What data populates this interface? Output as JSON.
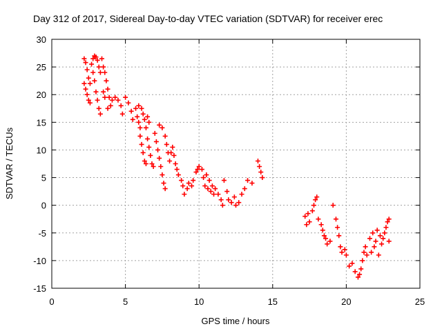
{
  "chart_data": {
    "type": "scatter",
    "title": "Day 312 of 2017, Sidereal Day-to-day VTEC variation (SDTVAR) for receiver erec",
    "xlabel": "GPS time / hours",
    "ylabel": "SDTVAR / TECUs",
    "xlim": [
      0,
      25
    ],
    "ylim": [
      -15,
      30
    ],
    "xticks": [
      "0",
      "5",
      "10",
      "15",
      "20",
      "25"
    ],
    "yticks": [
      "-15",
      "-10",
      "-5",
      "0",
      "5",
      "10",
      "15",
      "20",
      "25",
      "30"
    ],
    "grid": true,
    "marker": "+",
    "color": "#ff0000",
    "series": [
      {
        "name": "SDTVAR",
        "points": [
          [
            2.2,
            26.5
          ],
          [
            2.3,
            25.8
          ],
          [
            2.4,
            24.5
          ],
          [
            2.5,
            23.0
          ],
          [
            2.6,
            22.0
          ],
          [
            2.7,
            25.5
          ],
          [
            2.8,
            26.5
          ],
          [
            2.9,
            27.0
          ],
          [
            3.0,
            26.8
          ],
          [
            3.1,
            26.2
          ],
          [
            3.2,
            25.0
          ],
          [
            3.3,
            24.0
          ],
          [
            3.4,
            26.5
          ],
          [
            3.5,
            25.0
          ],
          [
            3.6,
            24.0
          ],
          [
            3.7,
            22.5
          ],
          [
            3.8,
            21.0
          ],
          [
            3.9,
            19.5
          ],
          [
            4.0,
            18.0
          ],
          [
            2.2,
            22.0
          ],
          [
            2.3,
            21.0
          ],
          [
            2.4,
            20.0
          ],
          [
            2.5,
            19.0
          ],
          [
            2.6,
            18.5
          ],
          [
            2.8,
            24.0
          ],
          [
            2.9,
            22.5
          ],
          [
            3.0,
            20.5
          ],
          [
            3.1,
            19.0
          ],
          [
            3.2,
            17.5
          ],
          [
            3.3,
            16.5
          ],
          [
            3.5,
            20.5
          ],
          [
            3.6,
            19.5
          ],
          [
            3.8,
            17.5
          ],
          [
            4.1,
            19.0
          ],
          [
            4.3,
            19.5
          ],
          [
            4.5,
            19.0
          ],
          [
            4.7,
            18.0
          ],
          [
            4.8,
            16.5
          ],
          [
            5.0,
            19.5
          ],
          [
            5.2,
            18.5
          ],
          [
            5.4,
            17.0
          ],
          [
            5.5,
            15.5
          ],
          [
            5.7,
            17.5
          ],
          [
            5.8,
            16.0
          ],
          [
            5.9,
            15.0
          ],
          [
            6.0,
            14.0
          ],
          [
            6.1,
            17.5
          ],
          [
            6.2,
            16.5
          ],
          [
            6.3,
            15.5
          ],
          [
            6.4,
            14.0
          ],
          [
            6.5,
            16.0
          ],
          [
            6.6,
            15.0
          ],
          [
            5.9,
            18.0
          ],
          [
            6.0,
            12.5
          ],
          [
            6.1,
            11.0
          ],
          [
            6.2,
            9.5
          ],
          [
            6.3,
            8.0
          ],
          [
            6.4,
            7.5
          ],
          [
            6.5,
            12.0
          ],
          [
            6.6,
            10.5
          ],
          [
            6.7,
            9.0
          ],
          [
            6.8,
            7.5
          ],
          [
            6.9,
            7.0
          ],
          [
            7.0,
            13.0
          ],
          [
            7.1,
            11.5
          ],
          [
            7.2,
            10.0
          ],
          [
            7.3,
            8.5
          ],
          [
            7.4,
            7.0
          ],
          [
            7.5,
            5.5
          ],
          [
            7.6,
            4.0
          ],
          [
            7.7,
            3.0
          ],
          [
            7.3,
            14.5
          ],
          [
            7.5,
            14.0
          ],
          [
            7.7,
            12.5
          ],
          [
            7.8,
            11.0
          ],
          [
            7.9,
            9.5
          ],
          [
            8.0,
            8.0
          ],
          [
            8.1,
            9.5
          ],
          [
            8.2,
            10.5
          ],
          [
            8.3,
            9.0
          ],
          [
            8.4,
            7.5
          ],
          [
            8.5,
            6.5
          ],
          [
            8.6,
            5.5
          ],
          [
            8.8,
            4.5
          ],
          [
            8.9,
            3.5
          ],
          [
            9.0,
            2.0
          ],
          [
            9.2,
            3.0
          ],
          [
            9.3,
            4.0
          ],
          [
            9.5,
            3.5
          ],
          [
            9.6,
            4.5
          ],
          [
            9.8,
            6.0
          ],
          [
            9.9,
            6.5
          ],
          [
            10.0,
            7.0
          ],
          [
            10.2,
            6.5
          ],
          [
            10.3,
            5.0
          ],
          [
            10.4,
            3.5
          ],
          [
            10.6,
            3.0
          ],
          [
            10.8,
            2.5
          ],
          [
            11.0,
            2.0
          ],
          [
            10.5,
            5.5
          ],
          [
            10.7,
            4.5
          ],
          [
            10.9,
            3.5
          ],
          [
            11.1,
            3.0
          ],
          [
            11.3,
            2.0
          ],
          [
            11.5,
            1.0
          ],
          [
            11.6,
            0.0
          ],
          [
            11.7,
            4.5
          ],
          [
            11.9,
            2.5
          ],
          [
            12.0,
            1.0
          ],
          [
            12.2,
            0.5
          ],
          [
            12.4,
            1.5
          ],
          [
            12.5,
            0.0
          ],
          [
            12.7,
            0.5
          ],
          [
            12.9,
            2.0
          ],
          [
            13.1,
            3.0
          ],
          [
            13.3,
            4.5
          ],
          [
            13.6,
            4.0
          ],
          [
            14.0,
            8.0
          ],
          [
            14.1,
            7.0
          ],
          [
            14.2,
            6.0
          ],
          [
            14.3,
            5.0
          ],
          [
            17.2,
            -2.0
          ],
          [
            17.3,
            -3.5
          ],
          [
            17.4,
            -1.5
          ],
          [
            17.5,
            -3.0
          ],
          [
            17.7,
            -1.0
          ],
          [
            17.8,
            0.0
          ],
          [
            17.9,
            1.0
          ],
          [
            18.0,
            1.5
          ],
          [
            18.1,
            -2.5
          ],
          [
            18.3,
            -3.5
          ],
          [
            18.4,
            -4.5
          ],
          [
            18.5,
            -5.5
          ],
          [
            18.6,
            -6.0
          ],
          [
            18.7,
            -7.0
          ],
          [
            18.9,
            -6.5
          ],
          [
            19.1,
            0.0
          ],
          [
            19.3,
            -2.5
          ],
          [
            19.4,
            -4.0
          ],
          [
            19.5,
            -5.5
          ],
          [
            19.6,
            -7.5
          ],
          [
            19.7,
            -8.5
          ],
          [
            19.9,
            -8.0
          ],
          [
            20.0,
            -9.0
          ],
          [
            20.2,
            -11.0
          ],
          [
            20.4,
            -10.5
          ],
          [
            20.6,
            -12.0
          ],
          [
            20.8,
            -13.0
          ],
          [
            20.9,
            -12.5
          ],
          [
            21.0,
            -11.5
          ],
          [
            21.1,
            -10.0
          ],
          [
            21.2,
            -8.5
          ],
          [
            21.3,
            -7.5
          ],
          [
            21.4,
            -9.0
          ],
          [
            21.6,
            -6.0
          ],
          [
            21.7,
            -8.5
          ],
          [
            21.8,
            -5.0
          ],
          [
            21.9,
            -7.5
          ],
          [
            22.0,
            -6.5
          ],
          [
            22.1,
            -4.5
          ],
          [
            22.2,
            -9.0
          ],
          [
            22.3,
            -5.5
          ],
          [
            22.4,
            -7.0
          ],
          [
            22.5,
            -6.0
          ],
          [
            22.6,
            -5.0
          ],
          [
            22.7,
            -4.0
          ],
          [
            22.8,
            -3.0
          ],
          [
            22.9,
            -2.5
          ],
          [
            22.9,
            -6.5
          ]
        ]
      }
    ]
  }
}
